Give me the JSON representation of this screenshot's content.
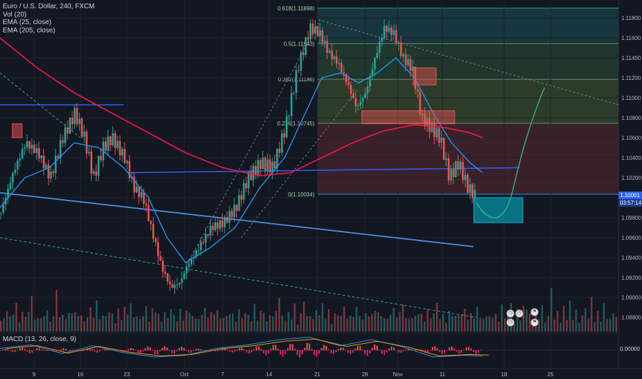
{
  "legend": {
    "symbol": "Euro / U.S. Dollar, 240, FXCM",
    "vol": "Vol (20)",
    "ema25": "EMA (25, close)",
    "ema205": "EMA (205, close)"
  },
  "macd_legend": "MACD (13, 26, close, 9)",
  "price_tags": {
    "last_price": "1.10001",
    "countdown": "03:57:14",
    "macd_value": "0.00000"
  },
  "colors": {
    "background": "#131722",
    "candle_up": "#26a69a",
    "candle_down": "#ef5350",
    "ema25": "#2196f3",
    "ema205": "#ff1744",
    "trend_blue": "#2962ff",
    "fib_teal": "#26a69a",
    "projection": "#3fb27f"
  },
  "icons": [
    "calendar-event-icon",
    "calendar-event-icon",
    "calendar-event-icon",
    "flag-icon",
    "flag-icon"
  ],
  "chart_data": {
    "type": "candlestick",
    "ylim": [
      1.0866,
      1.1198
    ],
    "y_ticks": [
      "1.11800",
      "1.11600",
      "1.11400",
      "1.11200",
      "1.11000",
      "1.10800",
      "1.10600",
      "1.10400",
      "1.10200",
      "1.10000",
      "1.09800",
      "1.09600",
      "1.09400",
      "1.09200",
      "1.09000",
      "1.08800"
    ],
    "y_tick_values": [
      1.118,
      1.116,
      1.114,
      1.112,
      1.11,
      1.108,
      1.106,
      1.104,
      1.102,
      1.1,
      1.098,
      1.096,
      1.094,
      1.092,
      1.09,
      1.088
    ],
    "x_ticks": [
      "9",
      "16",
      "23",
      "Oct",
      "7",
      "14",
      "21",
      "28",
      "Nov",
      "11",
      "18",
      "25"
    ],
    "x_tick_positions": [
      0.055,
      0.13,
      0.205,
      0.298,
      0.36,
      0.435,
      0.513,
      0.59,
      0.643,
      0.715,
      0.815,
      0.89
    ],
    "fib_levels": [
      {
        "label": "0.618(1.11898)",
        "value": 1.11898
      },
      {
        "label": "0.5(1.11543)",
        "value": 1.11543
      },
      {
        "label": "0.382(1.11186)",
        "value": 1.11186
      },
      {
        "label": "0.236(1.10745)",
        "value": 1.10745
      },
      {
        "label": "0(1.10034)",
        "value": 1.10034
      }
    ],
    "candle_path": [
      [
        0.0,
        1.0985
      ],
      [
        0.02,
        1.1025
      ],
      [
        0.04,
        1.1055
      ],
      [
        0.06,
        1.1045
      ],
      [
        0.08,
        1.102
      ],
      [
        0.1,
        1.106
      ],
      [
        0.12,
        1.1085
      ],
      [
        0.135,
        1.106
      ],
      [
        0.15,
        1.102
      ],
      [
        0.165,
        1.105
      ],
      [
        0.18,
        1.106
      ],
      [
        0.2,
        1.104
      ],
      [
        0.215,
        1.101
      ],
      [
        0.23,
        1.1
      ],
      [
        0.245,
        1.0965
      ],
      [
        0.26,
        1.093
      ],
      [
        0.275,
        1.091
      ],
      [
        0.29,
        1.0915
      ],
      [
        0.3,
        1.093
      ],
      [
        0.32,
        1.095
      ],
      [
        0.34,
        1.097
      ],
      [
        0.36,
        1.0975
      ],
      [
        0.38,
        1.099
      ],
      [
        0.4,
        1.102
      ],
      [
        0.42,
        1.1035
      ],
      [
        0.44,
        1.103
      ],
      [
        0.46,
        1.107
      ],
      [
        0.48,
        1.113
      ],
      [
        0.5,
        1.117
      ],
      [
        0.515,
        1.1165
      ],
      [
        0.53,
        1.1145
      ],
      [
        0.545,
        1.1135
      ],
      [
        0.56,
        1.1115
      ],
      [
        0.575,
        1.109
      ],
      [
        0.59,
        1.1105
      ],
      [
        0.605,
        1.114
      ],
      [
        0.62,
        1.117
      ],
      [
        0.635,
        1.1165
      ],
      [
        0.65,
        1.114
      ],
      [
        0.665,
        1.113
      ],
      [
        0.68,
        1.108
      ],
      [
        0.695,
        1.107
      ],
      [
        0.71,
        1.106
      ],
      [
        0.725,
        1.102
      ],
      [
        0.74,
        1.1035
      ],
      [
        0.755,
        1.101
      ],
      [
        0.77,
        1.1
      ]
    ],
    "ema25": [
      [
        0.0,
        1.099
      ],
      [
        0.04,
        1.102
      ],
      [
        0.08,
        1.103
      ],
      [
        0.12,
        1.1055
      ],
      [
        0.16,
        1.105
      ],
      [
        0.2,
        1.103
      ],
      [
        0.24,
        1.1
      ],
      [
        0.27,
        1.096
      ],
      [
        0.3,
        1.0935
      ],
      [
        0.34,
        1.095
      ],
      [
        0.38,
        1.097
      ],
      [
        0.42,
        1.101
      ],
      [
        0.46,
        1.104
      ],
      [
        0.49,
        1.108
      ],
      [
        0.52,
        1.112
      ],
      [
        0.55,
        1.1125
      ],
      [
        0.58,
        1.1115
      ],
      [
        0.61,
        1.1125
      ],
      [
        0.64,
        1.114
      ],
      [
        0.67,
        1.112
      ],
      [
        0.7,
        1.1085
      ],
      [
        0.73,
        1.1055
      ],
      [
        0.76,
        1.1035
      ],
      [
        0.78,
        1.1025
      ]
    ],
    "ema205": [
      [
        0.0,
        1.116
      ],
      [
        0.06,
        1.113
      ],
      [
        0.12,
        1.1105
      ],
      [
        0.18,
        1.1085
      ],
      [
        0.24,
        1.1065
      ],
      [
        0.3,
        1.1045
      ],
      [
        0.36,
        1.103
      ],
      [
        0.42,
        1.1022
      ],
      [
        0.47,
        1.1025
      ],
      [
        0.52,
        1.104
      ],
      [
        0.57,
        1.1055
      ],
      [
        0.62,
        1.1067
      ],
      [
        0.67,
        1.1073
      ],
      [
        0.72,
        1.107
      ],
      [
        0.76,
        1.1065
      ],
      [
        0.78,
        1.106
      ]
    ],
    "volume_heights": [
      0.35,
      0.25,
      0.55,
      0.3,
      0.4,
      0.6,
      0.2,
      0.45,
      0.3,
      0.5,
      0.7,
      0.35,
      0.25,
      0.4,
      0.3,
      0.55,
      0.2,
      0.35,
      0.9,
      0.3,
      0.4,
      0.25,
      0.5,
      0.35,
      0.6,
      0.3,
      0.45,
      0.2,
      0.35,
      0.5,
      0.3,
      0.7,
      0.25,
      0.4,
      0.3,
      0.55,
      0.35,
      0.25,
      0.45,
      0.3,
      0.5,
      0.4,
      0.6,
      0.3,
      0.35,
      0.25,
      0.4,
      0.5,
      0.3,
      0.45,
      0.55,
      0.35,
      0.25,
      0.4,
      0.3,
      0.5,
      0.35,
      0.25,
      0.45,
      0.3,
      0.4,
      0.6,
      0.3,
      0.35,
      0.25,
      0.4,
      0.5,
      0.3,
      0.45,
      0.35,
      0.55,
      0.25,
      0.4,
      0.3,
      0.5,
      0.35,
      0.25,
      0.45,
      0.3,
      0.4
    ],
    "macd_path": [
      [
        0.0,
        0.0002
      ],
      [
        0.05,
        0.0006
      ],
      [
        0.1,
        -0.0004
      ],
      [
        0.15,
        0.0005
      ],
      [
        0.2,
        -0.0003
      ],
      [
        0.25,
        -0.0008
      ],
      [
        0.3,
        -0.0006
      ],
      [
        0.35,
        0.0002
      ],
      [
        0.4,
        0.0006
      ],
      [
        0.45,
        0.0012
      ],
      [
        0.5,
        0.0015
      ],
      [
        0.55,
        0.0005
      ],
      [
        0.6,
        0.0012
      ],
      [
        0.65,
        0.0004
      ],
      [
        0.7,
        -0.0008
      ],
      [
        0.75,
        -0.0006
      ],
      [
        0.78,
        -0.0007
      ]
    ],
    "ylim_macd": [
      -0.002,
      0.002
    ]
  }
}
